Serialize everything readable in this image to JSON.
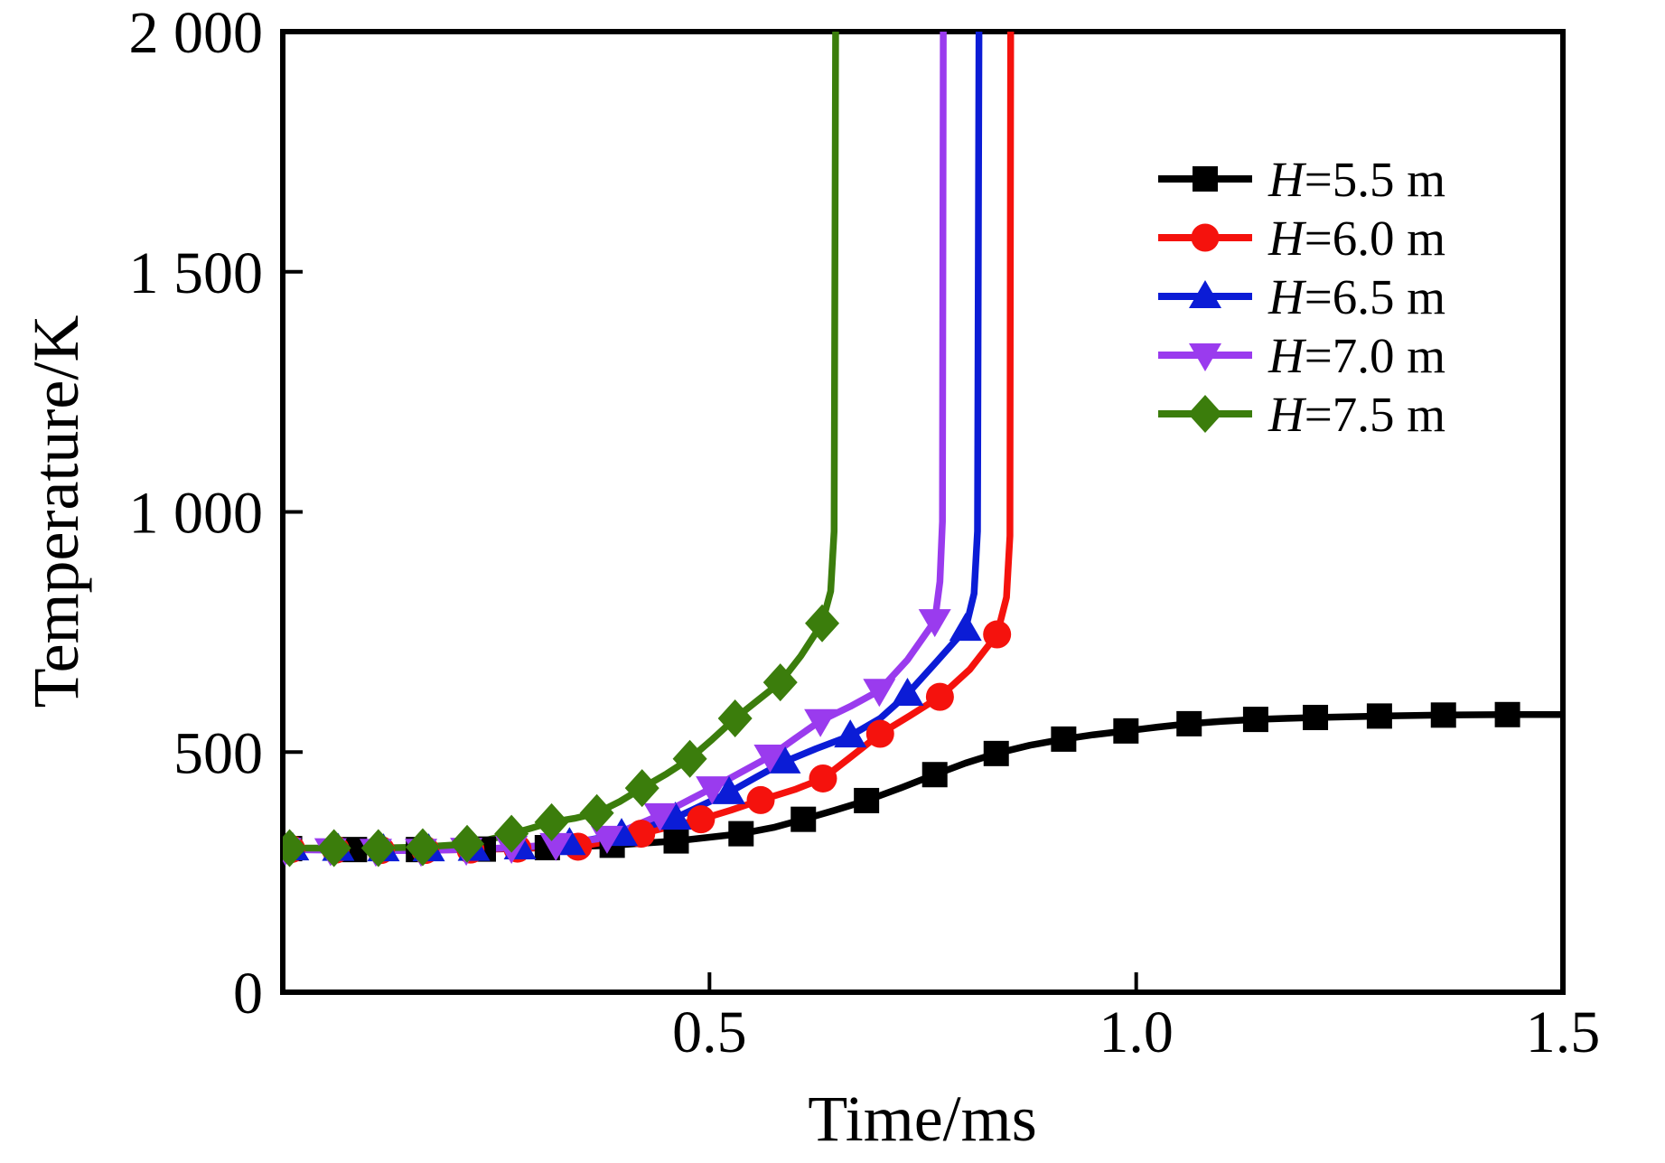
{
  "chart_data": {
    "type": "line",
    "title": "",
    "xlabel": "Time/ms",
    "ylabel": "Temperature/K",
    "xlim": [
      0,
      1.5
    ],
    "ylim": [
      0,
      2000
    ],
    "grid": false,
    "legend_position": "upper-right-inside",
    "x_ticks": [
      {
        "value": 0.5,
        "label": "0.5"
      },
      {
        "value": 1.0,
        "label": "1.0"
      },
      {
        "value": 1.5,
        "label": "1.5"
      }
    ],
    "y_ticks": [
      {
        "value": 0,
        "label": "0"
      },
      {
        "value": 500,
        "label": "500"
      },
      {
        "value": 1000,
        "label": "1 000"
      },
      {
        "value": 1500,
        "label": "1 500"
      },
      {
        "value": 2000,
        "label": "2 000"
      }
    ],
    "series": [
      {
        "name": "H=5.5 m",
        "color": "#000000",
        "marker": "square",
        "ignition_time_ms": null,
        "plateau_temperature_K": 578,
        "points": [
          [
            0,
            299
          ],
          [
            0.05,
            298
          ],
          [
            0.1,
            297
          ],
          [
            0.15,
            297
          ],
          [
            0.2,
            298
          ],
          [
            0.25,
            299
          ],
          [
            0.31,
            301
          ],
          [
            0.386,
            306
          ],
          [
            0.461,
            315
          ],
          [
            0.537,
            330
          ],
          [
            0.575,
            343
          ],
          [
            0.61,
            360
          ],
          [
            0.647,
            379
          ],
          [
            0.684,
            399
          ],
          [
            0.725,
            426
          ],
          [
            0.764,
            453
          ],
          [
            0.8,
            477
          ],
          [
            0.836,
            497
          ],
          [
            0.875,
            514
          ],
          [
            0.915,
            527
          ],
          [
            0.95,
            536
          ],
          [
            0.988,
            544
          ],
          [
            1.025,
            552
          ],
          [
            1.062,
            559
          ],
          [
            1.1,
            564
          ],
          [
            1.14,
            568
          ],
          [
            1.175,
            570
          ],
          [
            1.21,
            572
          ],
          [
            1.285,
            575
          ],
          [
            1.36,
            577
          ],
          [
            1.435,
            578
          ],
          [
            1.5,
            578
          ]
        ],
        "marker_points": [
          [
            0.008,
            299
          ],
          [
            0.084,
            297
          ],
          [
            0.159,
            297
          ],
          [
            0.235,
            298
          ],
          [
            0.31,
            301
          ],
          [
            0.386,
            306
          ],
          [
            0.461,
            315
          ],
          [
            0.537,
            330
          ],
          [
            0.61,
            360
          ],
          [
            0.684,
            399
          ],
          [
            0.764,
            453
          ],
          [
            0.836,
            497
          ],
          [
            0.915,
            527
          ],
          [
            0.988,
            544
          ],
          [
            1.062,
            559
          ],
          [
            1.14,
            568
          ],
          [
            1.21,
            572
          ],
          [
            1.285,
            575
          ],
          [
            1.36,
            577
          ],
          [
            1.435,
            578
          ]
        ]
      },
      {
        "name": "H=6.0 m",
        "color": "#f5120d",
        "marker": "circle",
        "ignition_time_ms": 0.85,
        "plateau_temperature_K": null,
        "points": [
          [
            0,
            298
          ],
          [
            0.06,
            297
          ],
          [
            0.112,
            296
          ],
          [
            0.165,
            296
          ],
          [
            0.219,
            297
          ],
          [
            0.272,
            299
          ],
          [
            0.31,
            301
          ],
          [
            0.346,
            303
          ],
          [
            0.385,
            315
          ],
          [
            0.42,
            330
          ],
          [
            0.455,
            345
          ],
          [
            0.49,
            360
          ],
          [
            0.525,
            379
          ],
          [
            0.56,
            400
          ],
          [
            0.6,
            422
          ],
          [
            0.633,
            445
          ],
          [
            0.665,
            489
          ],
          [
            0.7,
            538
          ],
          [
            0.735,
            576
          ],
          [
            0.77,
            615
          ],
          [
            0.805,
            672
          ],
          [
            0.837,
            745
          ],
          [
            0.848,
            822
          ],
          [
            0.852,
            950
          ],
          [
            0.853,
            2100
          ]
        ],
        "marker_points": [
          [
            0.01,
            298
          ],
          [
            0.062,
            297
          ],
          [
            0.115,
            296
          ],
          [
            0.167,
            296
          ],
          [
            0.22,
            297
          ],
          [
            0.275,
            299
          ],
          [
            0.346,
            303
          ],
          [
            0.42,
            330
          ],
          [
            0.49,
            360
          ],
          [
            0.56,
            400
          ],
          [
            0.633,
            445
          ],
          [
            0.7,
            538
          ],
          [
            0.77,
            615
          ],
          [
            0.837,
            745
          ]
        ]
      },
      {
        "name": "H=6.5 m",
        "color": "#0b1cd6",
        "marker": "triangle-up",
        "ignition_time_ms": 0.82,
        "plateau_temperature_K": null,
        "points": [
          [
            0,
            299
          ],
          [
            0.063,
            298
          ],
          [
            0.117,
            297
          ],
          [
            0.17,
            297
          ],
          [
            0.223,
            298
          ],
          [
            0.277,
            301
          ],
          [
            0.336,
            310
          ],
          [
            0.397,
            329
          ],
          [
            0.46,
            363
          ],
          [
            0.523,
            416
          ],
          [
            0.555,
            448
          ],
          [
            0.588,
            480
          ],
          [
            0.625,
            507
          ],
          [
            0.665,
            534
          ],
          [
            0.7,
            570
          ],
          [
            0.732,
            621
          ],
          [
            0.765,
            686
          ],
          [
            0.8,
            756
          ],
          [
            0.81,
            830
          ],
          [
            0.814,
            960
          ],
          [
            0.816,
            2100
          ]
        ],
        "marker_points": [
          [
            0.012,
            299
          ],
          [
            0.065,
            298
          ],
          [
            0.118,
            297
          ],
          [
            0.171,
            297
          ],
          [
            0.224,
            298
          ],
          [
            0.278,
            301
          ],
          [
            0.336,
            310
          ],
          [
            0.397,
            329
          ],
          [
            0.46,
            363
          ],
          [
            0.523,
            416
          ],
          [
            0.588,
            480
          ],
          [
            0.665,
            534
          ],
          [
            0.732,
            621
          ],
          [
            0.8,
            756
          ]
        ]
      },
      {
        "name": "H=7.0 m",
        "color": "#9a3bee",
        "marker": "triangle-down",
        "ignition_time_ms": 0.77,
        "plateau_temperature_K": null,
        "points": [
          [
            0,
            297
          ],
          [
            0.055,
            296
          ],
          [
            0.108,
            295
          ],
          [
            0.161,
            295
          ],
          [
            0.214,
            297
          ],
          [
            0.267,
            301
          ],
          [
            0.32,
            307
          ],
          [
            0.38,
            322
          ],
          [
            0.442,
            369
          ],
          [
            0.503,
            425
          ],
          [
            0.537,
            458
          ],
          [
            0.571,
            491
          ],
          [
            0.6,
            528
          ],
          [
            0.63,
            565
          ],
          [
            0.665,
            595
          ],
          [
            0.699,
            628
          ],
          [
            0.732,
            692
          ],
          [
            0.764,
            773
          ],
          [
            0.77,
            855
          ],
          [
            0.773,
            980
          ],
          [
            0.774,
            2100
          ]
        ],
        "marker_points": [
          [
            0.003,
            297
          ],
          [
            0.056,
            296
          ],
          [
            0.109,
            295
          ],
          [
            0.162,
            295
          ],
          [
            0.215,
            297
          ],
          [
            0.268,
            301
          ],
          [
            0.32,
            307
          ],
          [
            0.38,
            322
          ],
          [
            0.442,
            369
          ],
          [
            0.503,
            425
          ],
          [
            0.571,
            491
          ],
          [
            0.63,
            565
          ],
          [
            0.699,
            628
          ],
          [
            0.764,
            773
          ]
        ]
      },
      {
        "name": "H=7.5 m",
        "color": "#3b7d0c",
        "marker": "diamond",
        "ignition_time_ms": 0.65,
        "plateau_temperature_K": null,
        "points": [
          [
            0,
            300
          ],
          [
            0.056,
            300
          ],
          [
            0.107,
            300
          ],
          [
            0.16,
            302
          ],
          [
            0.213,
            308
          ],
          [
            0.24,
            317
          ],
          [
            0.268,
            330
          ],
          [
            0.29,
            341
          ],
          [
            0.315,
            354
          ],
          [
            0.342,
            362
          ],
          [
            0.368,
            373
          ],
          [
            0.395,
            397
          ],
          [
            0.421,
            425
          ],
          [
            0.45,
            455
          ],
          [
            0.477,
            486
          ],
          [
            0.503,
            526
          ],
          [
            0.53,
            570
          ],
          [
            0.556,
            607
          ],
          [
            0.583,
            645
          ],
          [
            0.607,
            700
          ],
          [
            0.632,
            768
          ],
          [
            0.642,
            835
          ],
          [
            0.646,
            960
          ],
          [
            0.648,
            2100
          ]
        ],
        "marker_points": [
          [
            0.008,
            300
          ],
          [
            0.06,
            300
          ],
          [
            0.112,
            300
          ],
          [
            0.164,
            302
          ],
          [
            0.216,
            309
          ],
          [
            0.268,
            330
          ],
          [
            0.315,
            354
          ],
          [
            0.368,
            373
          ],
          [
            0.421,
            425
          ],
          [
            0.477,
            486
          ],
          [
            0.53,
            570
          ],
          [
            0.583,
            645
          ],
          [
            0.632,
            768
          ]
        ]
      }
    ]
  }
}
